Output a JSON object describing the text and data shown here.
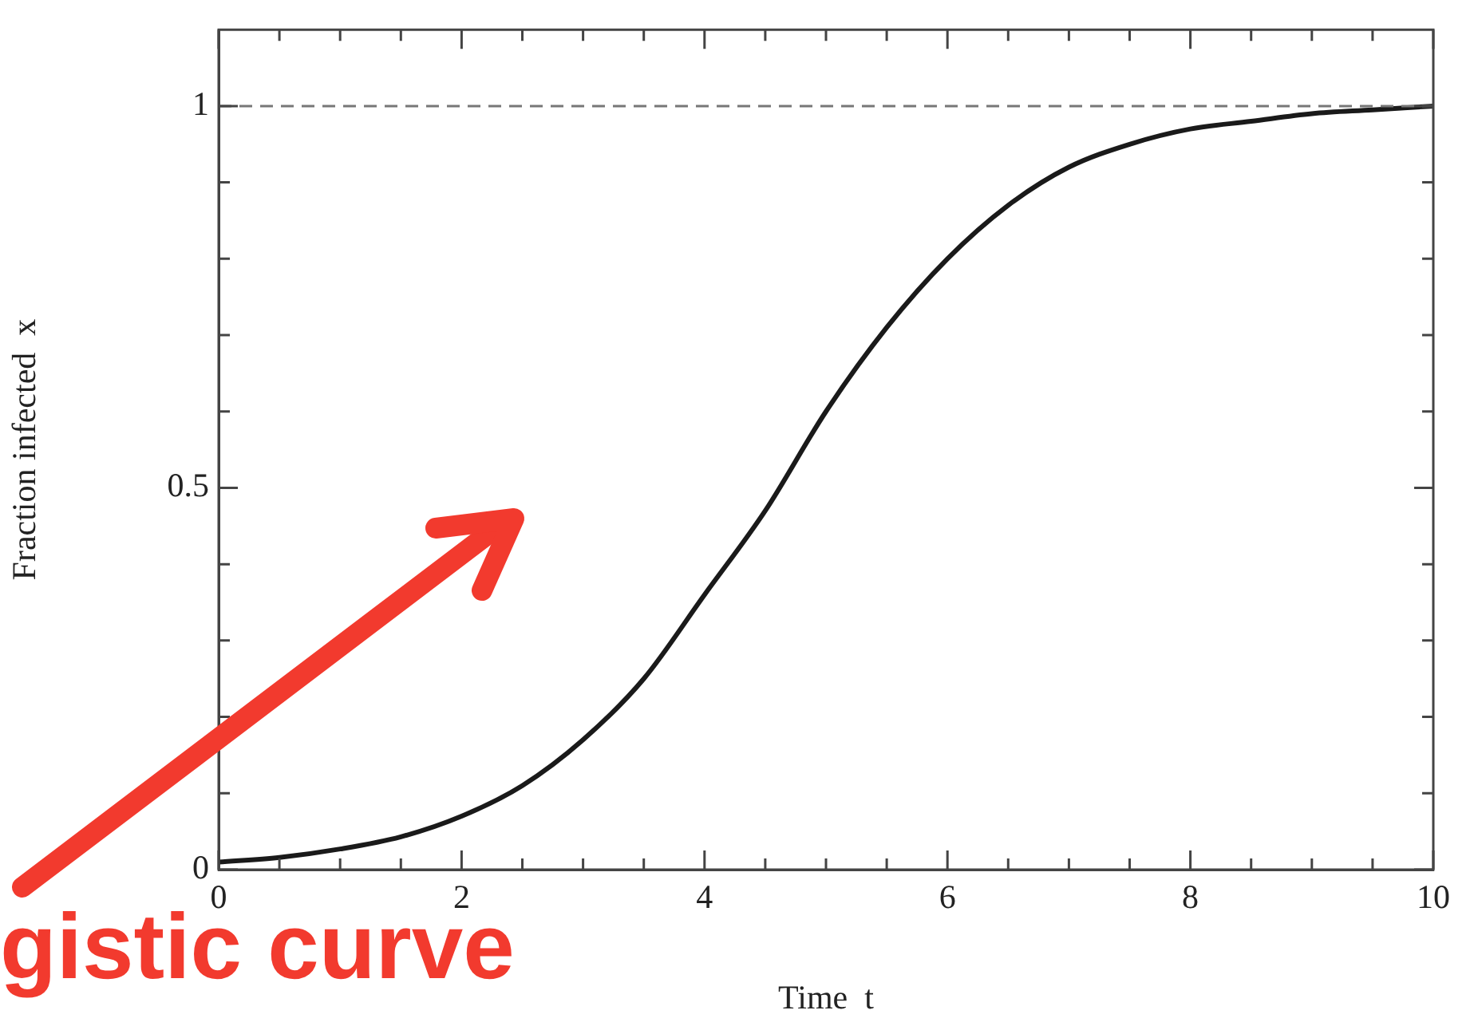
{
  "chart_data": {
    "type": "line",
    "xlabel": "Time  t",
    "ylabel": "Fraction infected  x",
    "annotations": [
      "gistic curve"
    ],
    "xlim": [
      0,
      10
    ],
    "xticks": [
      0,
      {
        "value": 0.5,
        "label": null
      },
      {
        "value": 1,
        "label": null
      },
      {
        "value": 1.5,
        "label": null
      },
      2,
      {
        "value": 2.5,
        "label": null
      },
      {
        "value": 3,
        "label": null
      },
      {
        "value": 3.5,
        "label": null
      },
      4,
      {
        "value": 4.5,
        "label": null
      },
      {
        "value": 5,
        "label": null
      },
      {
        "value": 5.5,
        "label": null
      },
      6,
      {
        "value": 6.5,
        "label": null
      },
      {
        "value": 7,
        "label": null
      },
      {
        "value": 7.5,
        "label": null
      },
      8,
      {
        "value": 8.5,
        "label": null
      },
      {
        "value": 9,
        "label": null
      },
      {
        "value": 9.5,
        "label": null
      },
      10
    ],
    "ylim": [
      0,
      1.1
    ],
    "yticks": [
      0,
      {
        "value": 0.1,
        "label": null
      },
      {
        "value": 0.2,
        "label": null
      },
      {
        "value": 0.3,
        "label": null
      },
      {
        "value": 0.4,
        "label": null
      },
      0.5,
      {
        "value": 0.6,
        "label": null
      },
      {
        "value": 0.7,
        "label": null
      },
      {
        "value": 0.8,
        "label": null
      },
      {
        "value": 0.9,
        "label": null
      },
      1
    ],
    "x": [
      0,
      0.5,
      1,
      1.5,
      2,
      2.5,
      3,
      3.5,
      4,
      4.5,
      5,
      5.5,
      6,
      6.5,
      7,
      7.5,
      8,
      8.5,
      9,
      9.5,
      10
    ],
    "series": [
      {
        "color": "#1a1a1a",
        "values": [
          0.01,
          0.016,
          0.027,
          0.043,
          0.07,
          0.11,
          0.17,
          0.25,
          0.36,
          0.47,
          0.6,
          0.71,
          0.8,
          0.87,
          0.92,
          0.95,
          0.97,
          0.98,
          0.99,
          0.995,
          1.0
        ]
      }
    ],
    "ref_lines": [
      {
        "axis": "y",
        "value": 1,
        "label": null,
        "color": "#777777",
        "line_style": "dashed"
      }
    ],
    "grid": false,
    "legend": false,
    "marker": "none",
    "line_style": "solid"
  }
}
